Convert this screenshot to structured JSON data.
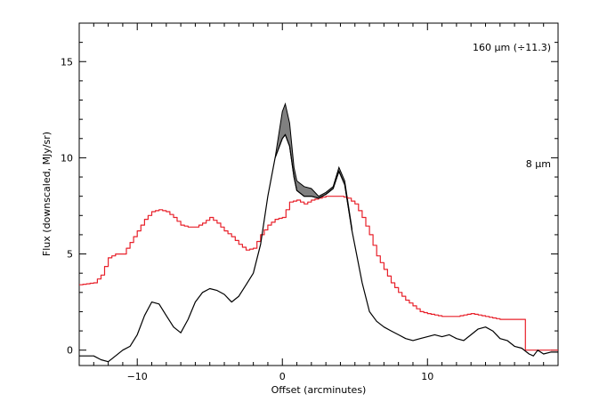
{
  "chart_data": {
    "type": "line",
    "title": "",
    "xlabel": "Offset (arcminutes)",
    "ylabel": "Flux (downscaled, MJy/sr)",
    "xlim": [
      -14,
      19
    ],
    "ylim": [
      -0.8,
      17
    ],
    "x_ticks": [
      -10,
      0,
      10
    ],
    "y_ticks": [
      0,
      5,
      10,
      15
    ],
    "x_tick_labels": [
      "−10",
      "0",
      "10"
    ],
    "y_tick_labels": [
      "0",
      "5",
      "10",
      "15"
    ],
    "grid": false,
    "legend_placement": "right, inside plot",
    "annotations": [
      {
        "text": "160 μm (÷11.3)",
        "color": "#e8202a"
      },
      {
        "text": "8 μm",
        "color": "#000000"
      }
    ],
    "series": [
      {
        "name": "160 μm (÷11.3)",
        "color": "#e8202a",
        "style": "step",
        "x": [
          -14,
          -13,
          -12.5,
          -12,
          -11.5,
          -11,
          -10.5,
          -10,
          -9.5,
          -9,
          -8.5,
          -8,
          -7.5,
          -7,
          -6.5,
          -6,
          -5.5,
          -5,
          -4.5,
          -4,
          -3.5,
          -3,
          -2.5,
          -2,
          -1.5,
          -1,
          -0.5,
          0,
          0.5,
          1,
          1.5,
          2,
          2.5,
          3,
          3.5,
          4,
          4.5,
          5,
          5.5,
          6,
          6.5,
          7,
          7.5,
          8,
          8.5,
          9,
          9.5,
          10,
          11,
          12,
          13,
          14,
          15,
          16,
          16.5,
          16.6,
          17,
          18,
          19
        ],
        "y": [
          3.4,
          3.5,
          3.9,
          4.8,
          5.0,
          5.0,
          5.6,
          6.2,
          6.8,
          7.2,
          7.3,
          7.2,
          6.9,
          6.5,
          6.4,
          6.4,
          6.6,
          6.9,
          6.6,
          6.2,
          5.9,
          5.5,
          5.2,
          5.3,
          6.0,
          6.5,
          6.8,
          6.9,
          7.7,
          7.8,
          7.6,
          7.8,
          7.9,
          8.0,
          8.0,
          8.0,
          7.9,
          7.6,
          6.9,
          6.0,
          4.9,
          4.2,
          3.5,
          3.0,
          2.6,
          2.3,
          2.0,
          1.9,
          1.75,
          1.75,
          1.9,
          1.75,
          1.6,
          1.6,
          1.6,
          0,
          0,
          0,
          0
        ]
      },
      {
        "name": "8 μm",
        "color": "#000000",
        "style": "line",
        "x": [
          -14,
          -13,
          -12.5,
          -12,
          -11.5,
          -11,
          -10.5,
          -10,
          -9.5,
          -9,
          -8.5,
          -8,
          -7.5,
          -7,
          -6.5,
          -6,
          -5.5,
          -5,
          -4.5,
          -4,
          -3.5,
          -3,
          -2.5,
          -2,
          -1.5,
          -1,
          -0.5,
          0,
          0.2,
          0.5,
          0.8,
          1,
          1.5,
          2,
          2.5,
          3,
          3.5,
          3.9,
          4.3,
          4.8,
          5.5,
          6,
          6.5,
          7,
          7.5,
          8,
          8.5,
          9,
          9.5,
          10,
          10.5,
          11,
          11.5,
          12,
          12.5,
          13,
          13.5,
          14,
          14.5,
          15,
          15.5,
          16,
          16.5,
          17,
          17.3,
          17.6,
          18,
          18.5,
          19
        ],
        "y": [
          -0.3,
          -0.3,
          -0.5,
          -0.6,
          -0.3,
          0,
          0.2,
          0.8,
          1.8,
          2.5,
          2.4,
          1.8,
          1.2,
          0.9,
          1.6,
          2.5,
          3.0,
          3.2,
          3.1,
          2.9,
          2.5,
          2.8,
          3.4,
          4.0,
          5.5,
          8.0,
          10.0,
          11.0,
          11.2,
          10.6,
          9.0,
          8.3,
          8.0,
          8.0,
          7.9,
          8.1,
          8.4,
          9.3,
          8.6,
          6.2,
          3.5,
          2.0,
          1.5,
          1.2,
          1.0,
          0.8,
          0.6,
          0.5,
          0.6,
          0.7,
          0.8,
          0.7,
          0.8,
          0.6,
          0.5,
          0.8,
          1.1,
          1.2,
          1.0,
          0.6,
          0.5,
          0.2,
          0.1,
          -0.2,
          -0.3,
          0,
          -0.2,
          -0.1,
          -0.1
        ]
      }
    ],
    "uncertainty_band": {
      "color": "#808080",
      "x": [
        -0.5,
        0,
        0.2,
        0.5,
        0.8,
        1,
        1.5,
        2,
        2.5,
        3,
        3.5,
        3.9,
        4.3,
        4.8
      ],
      "y_lower": [
        10.0,
        11.0,
        11.2,
        10.6,
        9.0,
        8.3,
        8.0,
        8.0,
        7.9,
        8.1,
        8.4,
        9.3,
        8.6,
        6.2
      ],
      "y_upper": [
        10.0,
        12.4,
        12.8,
        11.8,
        9.5,
        8.8,
        8.5,
        8.4,
        8.0,
        8.2,
        8.5,
        9.5,
        8.8,
        6.3
      ]
    }
  }
}
